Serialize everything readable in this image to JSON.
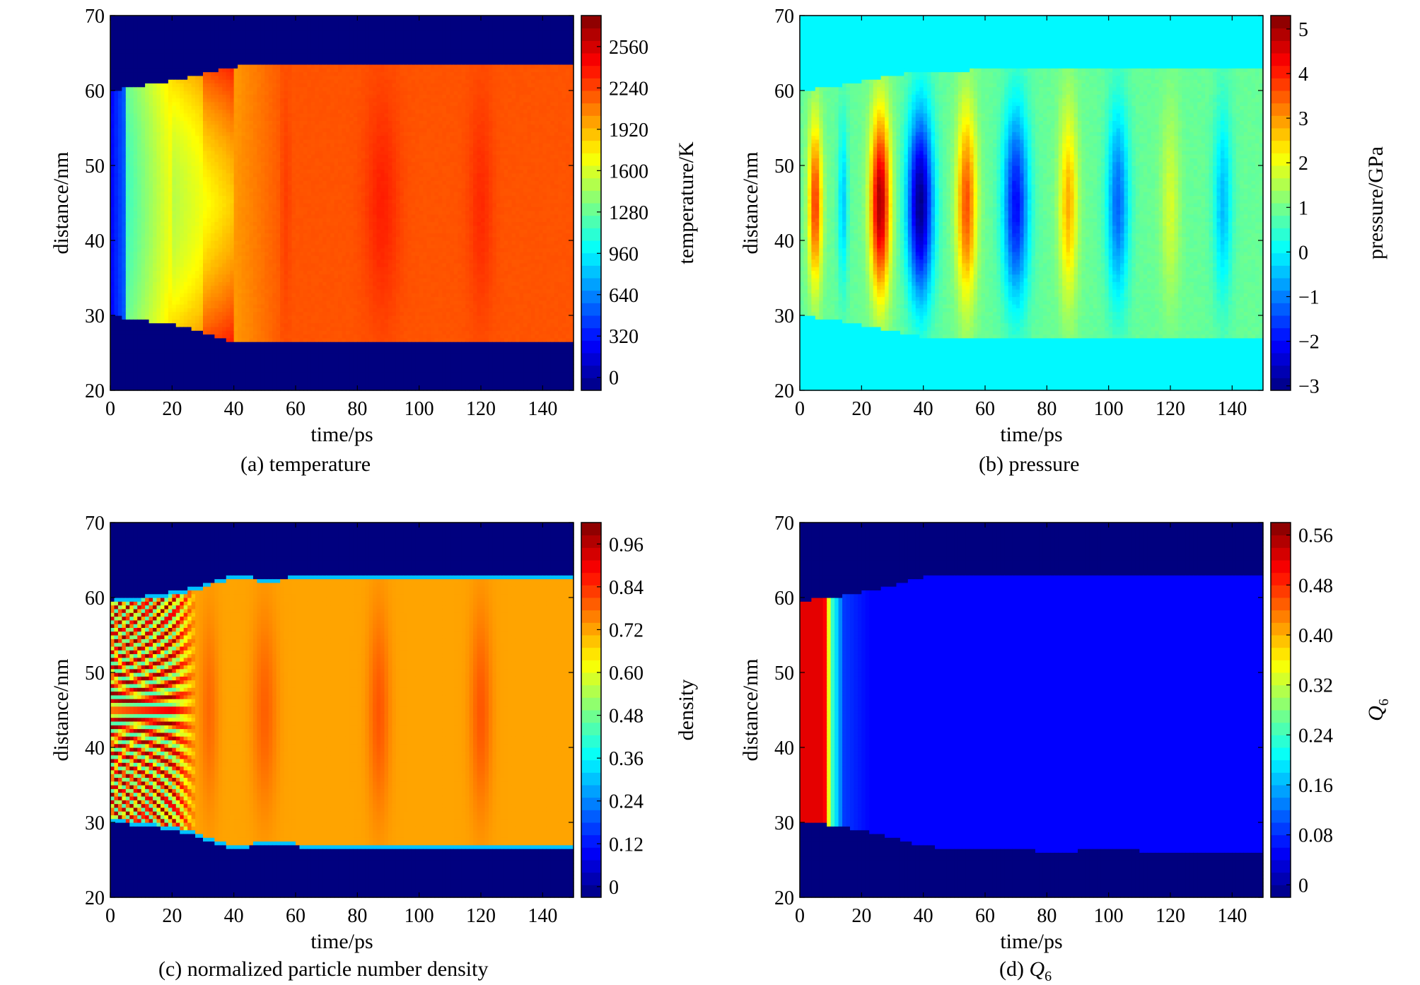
{
  "figure": {
    "caption_a": "(a) temperature",
    "caption_b": "(b) pressure",
    "caption_c": "(c) normalized particle number density",
    "caption_d_prefix": "(d) ",
    "caption_d_var": "Q",
    "caption_d_sub": "6"
  },
  "colors": {
    "jet": [
      "#00007f",
      "#0000ff",
      "#007fff",
      "#00ffff",
      "#7fff7f",
      "#ffff00",
      "#ff7f00",
      "#ff0000",
      "#7f0000"
    ],
    "background": "#ffffff"
  },
  "chart_data": [
    {
      "id": "a",
      "type": "heatmap",
      "title": "(a) temperature",
      "xlabel": "time/ps",
      "ylabel": "distance/nm",
      "colorbar_label": "temperature/K",
      "xlim": [
        0,
        150
      ],
      "ylim": [
        20,
        70
      ],
      "xticks": [
        0,
        20,
        40,
        60,
        80,
        100,
        120,
        140
      ],
      "yticks": [
        20,
        30,
        40,
        50,
        60,
        70
      ],
      "clim": [
        -100,
        2800
      ],
      "cticks": [
        0,
        320,
        640,
        960,
        1280,
        1600,
        1920,
        2240,
        2560
      ],
      "ctick_labels": [
        "0",
        "320",
        "640",
        "960",
        "1280",
        "1600",
        "1920",
        "2240",
        "2560"
      ],
      "background_value": -100,
      "profile": "temperature",
      "upper_boundary": {
        "t": [
          0,
          5,
          10,
          20,
          30,
          38,
          45,
          60,
          70,
          80,
          100,
          120,
          150
        ],
        "d": [
          60,
          60.3,
          60.7,
          61.3,
          62.2,
          63.2,
          63.3,
          63.3,
          63.6,
          63.3,
          63.4,
          63.4,
          63.4
        ]
      },
      "lower_boundary": {
        "t": [
          0,
          5,
          10,
          20,
          30,
          38,
          45,
          60,
          70,
          80,
          100,
          120,
          150
        ],
        "d": [
          30,
          29.7,
          29.4,
          28.9,
          27.8,
          26.7,
          26.6,
          26.6,
          26.3,
          26.3,
          26.3,
          26.3,
          26.3
        ]
      }
    },
    {
      "id": "b",
      "type": "heatmap",
      "title": "(b) pressure",
      "xlabel": "time/ps",
      "ylabel": "distance/nm",
      "colorbar_label": "pressure/GPa",
      "xlim": [
        0,
        150
      ],
      "ylim": [
        20,
        70
      ],
      "xticks": [
        0,
        20,
        40,
        60,
        80,
        100,
        120,
        140
      ],
      "yticks": [
        20,
        30,
        40,
        50,
        60,
        70
      ],
      "clim": [
        -3.1,
        5.3
      ],
      "cticks": [
        -3,
        -2,
        -1,
        0,
        1,
        2,
        3,
        4,
        5
      ],
      "ctick_labels": [
        "−3",
        "−2",
        "−1",
        "0",
        "1",
        "2",
        "3",
        "4",
        "5"
      ],
      "background_value": 0,
      "profile": "pressure",
      "pulses": [
        {
          "t": 5,
          "p": 3.8,
          "w": 2.2
        },
        {
          "t": 14,
          "p": -0.4,
          "w": 1.6
        },
        {
          "t": 26,
          "p": 5.0,
          "w": 3.2
        },
        {
          "t": 39,
          "p": -3.0,
          "w": 4.2
        },
        {
          "t": 54,
          "p": 3.6,
          "w": 3.2
        },
        {
          "t": 70,
          "p": -2.0,
          "w": 4.2
        },
        {
          "t": 87,
          "p": 2.8,
          "w": 3.0
        },
        {
          "t": 103,
          "p": -1.2,
          "w": 3.6
        },
        {
          "t": 120,
          "p": 1.8,
          "w": 3.0
        },
        {
          "t": 137,
          "p": -0.5,
          "w": 3.0
        }
      ],
      "upper_boundary": {
        "t": [
          0,
          10,
          20,
          30,
          40,
          60,
          80,
          100,
          120,
          150
        ],
        "d": [
          60,
          60.5,
          61.2,
          62.0,
          62.6,
          62.8,
          63.0,
          62.9,
          63.0,
          63.0
        ]
      },
      "lower_boundary": {
        "t": [
          0,
          10,
          20,
          30,
          40,
          60,
          80,
          100,
          120,
          150
        ],
        "d": [
          30,
          29.5,
          28.8,
          28.0,
          27.2,
          26.9,
          26.8,
          26.9,
          26.8,
          26.8
        ]
      }
    },
    {
      "id": "c",
      "type": "heatmap",
      "title": "(c) normalized particle number density",
      "xlabel": "time/ps",
      "ylabel": "distance/nm",
      "colorbar_label": "density",
      "xlim": [
        0,
        150
      ],
      "ylim": [
        20,
        70
      ],
      "xticks": [
        0,
        20,
        40,
        60,
        80,
        100,
        120,
        140
      ],
      "yticks": [
        20,
        30,
        40,
        50,
        60,
        70
      ],
      "clim": [
        -0.03,
        1.02
      ],
      "cticks": [
        0,
        0.12,
        0.24,
        0.36,
        0.48,
        0.6,
        0.72,
        0.84,
        0.96
      ],
      "ctick_labels": [
        "0",
        "0.12",
        "0.24",
        "0.36",
        "0.48",
        "0.60",
        "0.72",
        "0.84",
        "0.96"
      ],
      "background_value": -0.03,
      "profile": "density",
      "upper_boundary": {
        "t": [
          0,
          10,
          20,
          28,
          35,
          40,
          50,
          60,
          70,
          80,
          90,
          100,
          110,
          120,
          130,
          140,
          150
        ],
        "d": [
          59.7,
          60.2,
          60.8,
          61.5,
          62.5,
          63.0,
          62.6,
          62.8,
          63.2,
          63.0,
          62.8,
          63.0,
          63.2,
          62.9,
          63.1,
          63.0,
          63.0
        ]
      },
      "lower_boundary": {
        "t": [
          0,
          10,
          20,
          28,
          35,
          40,
          50,
          60,
          70,
          80,
          90,
          100,
          110,
          120,
          130,
          140,
          150
        ],
        "d": [
          30.0,
          29.6,
          29.0,
          28.2,
          27.0,
          26.6,
          26.9,
          26.8,
          26.4,
          26.5,
          26.7,
          26.5,
          26.4,
          26.6,
          26.5,
          26.5,
          26.5
        ]
      }
    },
    {
      "id": "d",
      "type": "heatmap",
      "title": "(d) Q6",
      "xlabel": "time/ps",
      "ylabel": "distance/nm",
      "colorbar_label": "Q",
      "colorbar_label_sub": "6",
      "xlim": [
        0,
        150
      ],
      "ylim": [
        20,
        70
      ],
      "xticks": [
        0,
        20,
        40,
        60,
        80,
        100,
        120,
        140
      ],
      "yticks": [
        20,
        30,
        40,
        50,
        60,
        70
      ],
      "clim": [
        -0.02,
        0.58
      ],
      "cticks": [
        0,
        0.08,
        0.16,
        0.24,
        0.32,
        0.4,
        0.48,
        0.56
      ],
      "ctick_labels": [
        "0",
        "0.08",
        "0.16",
        "0.24",
        "0.32",
        "0.40",
        "0.48",
        "0.56"
      ],
      "background_value": -0.02,
      "profile": "q6",
      "upper_boundary": {
        "t": [
          0,
          10,
          20,
          30,
          40,
          60,
          80,
          100,
          120,
          150
        ],
        "d": [
          59.6,
          60.0,
          60.7,
          61.6,
          62.8,
          63.0,
          63.2,
          63.1,
          63.2,
          63.2
        ]
      },
      "lower_boundary": {
        "t": [
          0,
          10,
          20,
          30,
          40,
          60,
          80,
          100,
          120,
          150
        ],
        "d": [
          30.0,
          29.7,
          29.0,
          28.0,
          26.8,
          26.5,
          26.2,
          26.3,
          26.2,
          26.2
        ]
      }
    }
  ]
}
